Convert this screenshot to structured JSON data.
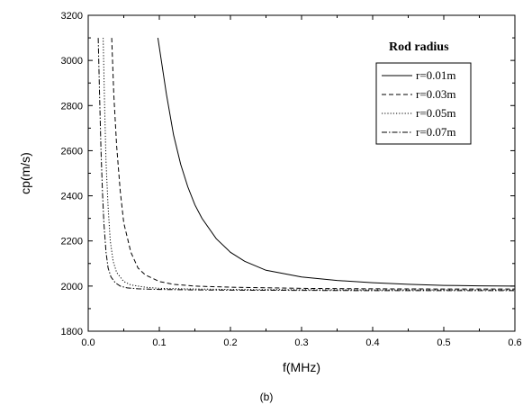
{
  "chart_data": {
    "type": "line",
    "xlabel": "f(MHz)",
    "ylabel": "cp(m/s)",
    "caption": "(b)",
    "xlim": [
      0.0,
      0.6
    ],
    "ylim": [
      1800,
      3200
    ],
    "xticks": [
      "0.0",
      "0.1",
      "0.2",
      "0.3",
      "0.4",
      "0.5",
      "0.6"
    ],
    "yticks": [
      "1800",
      "2000",
      "2200",
      "2400",
      "2600",
      "2800",
      "3000",
      "3200"
    ],
    "grid": false,
    "legend": {
      "title": "Rod radius",
      "position": "top-right"
    },
    "series": [
      {
        "name": "r=0.01m",
        "dash": "solid",
        "x": [
          0.098,
          0.11,
          0.12,
          0.13,
          0.14,
          0.15,
          0.16,
          0.18,
          0.2,
          0.22,
          0.25,
          0.3,
          0.35,
          0.4,
          0.45,
          0.5,
          0.55,
          0.6
        ],
        "y": [
          3100,
          2850,
          2670,
          2540,
          2440,
          2360,
          2300,
          2210,
          2150,
          2110,
          2070,
          2040,
          2025,
          2015,
          2008,
          2003,
          2001,
          2000
        ]
      },
      {
        "name": "r=0.03m",
        "dash": "dashed",
        "x": [
          0.033,
          0.036,
          0.04,
          0.045,
          0.05,
          0.06,
          0.07,
          0.08,
          0.1,
          0.12,
          0.15,
          0.2,
          0.3,
          0.4,
          0.5,
          0.6
        ],
        "y": [
          3100,
          2850,
          2620,
          2420,
          2280,
          2150,
          2080,
          2050,
          2020,
          2008,
          2000,
          1995,
          1990,
          1988,
          1987,
          1987
        ]
      },
      {
        "name": "r=0.05m",
        "dash": "dotted",
        "x": [
          0.021,
          0.023,
          0.025,
          0.028,
          0.031,
          0.035,
          0.04,
          0.05,
          0.06,
          0.08,
          0.1,
          0.15,
          0.2,
          0.3,
          0.4,
          0.5,
          0.6
        ],
        "y": [
          3100,
          2800,
          2550,
          2350,
          2200,
          2110,
          2060,
          2020,
          2005,
          1995,
          1990,
          1987,
          1985,
          1984,
          1983,
          1983,
          1983
        ]
      },
      {
        "name": "r=0.07m",
        "dash": "dashdot",
        "x": [
          0.014,
          0.016,
          0.018,
          0.02,
          0.022,
          0.025,
          0.028,
          0.032,
          0.038,
          0.045,
          0.055,
          0.07,
          0.1,
          0.15,
          0.2,
          0.3,
          0.4,
          0.5,
          0.6
        ],
        "y": [
          3100,
          2850,
          2600,
          2420,
          2280,
          2150,
          2080,
          2040,
          2015,
          2000,
          1992,
          1988,
          1985,
          1983,
          1982,
          1981,
          1980,
          1980,
          1980
        ]
      }
    ]
  }
}
